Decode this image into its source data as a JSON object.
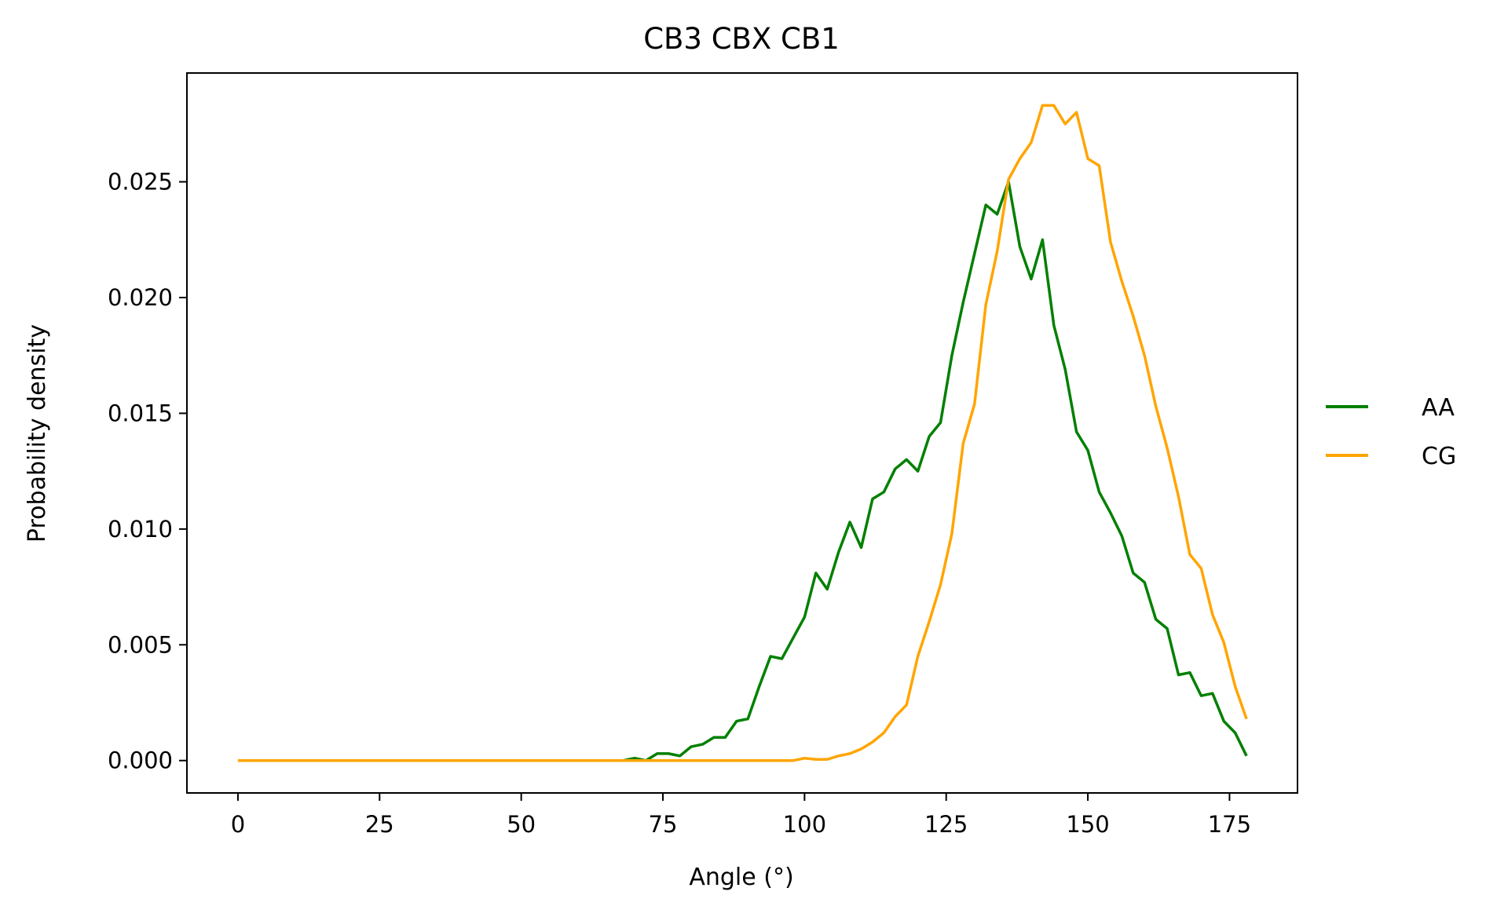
{
  "chart_data": {
    "type": "line",
    "title": "CB3 CBX CB1",
    "xlabel": "Angle (°)",
    "ylabel": "Probability density",
    "xlim": [
      -9,
      187
    ],
    "ylim": [
      -0.0014,
      0.0297
    ],
    "xticks": [
      0,
      25,
      50,
      75,
      100,
      125,
      150,
      175
    ],
    "xtick_labels": [
      "0",
      "25",
      "50",
      "75",
      "100",
      "125",
      "150",
      "175"
    ],
    "yticks": [
      0,
      0.005,
      0.01,
      0.015,
      0.02,
      0.025
    ],
    "ytick_labels": [
      "0.000",
      "0.005",
      "0.010",
      "0.015",
      "0.020",
      "0.025"
    ],
    "grid": false,
    "legend_position": "center-right outside",
    "series": [
      {
        "name": "AA",
        "color": "#008000",
        "x": [
          0,
          2,
          4,
          6,
          8,
          10,
          12,
          14,
          16,
          18,
          20,
          22,
          24,
          26,
          28,
          30,
          32,
          34,
          36,
          38,
          40,
          42,
          44,
          46,
          48,
          50,
          52,
          54,
          56,
          58,
          60,
          62,
          64,
          66,
          68,
          70,
          72,
          74,
          76,
          78,
          80,
          82,
          84,
          86,
          88,
          90,
          92,
          94,
          96,
          98,
          100,
          102,
          104,
          106,
          108,
          110,
          112,
          114,
          116,
          118,
          120,
          122,
          124,
          126,
          128,
          130,
          132,
          134,
          136,
          138,
          140,
          142,
          144,
          146,
          148,
          150,
          152,
          154,
          156,
          158,
          160,
          162,
          164,
          166,
          168,
          170,
          172,
          174,
          176,
          178
        ],
        "y": [
          0,
          0,
          0,
          0,
          0,
          0,
          0,
          0,
          0,
          0,
          0,
          0,
          0,
          0,
          0,
          0,
          0,
          0,
          0,
          0,
          0,
          0,
          0,
          0,
          0,
          0,
          0,
          0,
          0,
          0,
          0,
          0,
          0,
          0,
          0,
          0.0001,
          0,
          0.0003,
          0.0003,
          0.0002,
          0.0006,
          0.0007,
          0.001,
          0.001,
          0.0017,
          0.0018,
          0.0032,
          0.0045,
          0.0044,
          0.0053,
          0.0062,
          0.0081,
          0.0074,
          0.009,
          0.0103,
          0.0092,
          0.0113,
          0.0116,
          0.0126,
          0.013,
          0.0125,
          0.014,
          0.0146,
          0.0175,
          0.0198,
          0.0219,
          0.024,
          0.0236,
          0.025,
          0.0222,
          0.0208,
          0.0225,
          0.0188,
          0.0169,
          0.0142,
          0.0134,
          0.0116,
          0.0107,
          0.0097,
          0.0081,
          0.0077,
          0.0061,
          0.0057,
          0.0037,
          0.0038,
          0.0028,
          0.0029,
          0.0017,
          0.0012,
          0.0002
        ]
      },
      {
        "name": "CG",
        "color": "#ffa500",
        "x": [
          0,
          2,
          4,
          6,
          8,
          10,
          12,
          14,
          16,
          18,
          20,
          22,
          24,
          26,
          28,
          30,
          32,
          34,
          36,
          38,
          40,
          42,
          44,
          46,
          48,
          50,
          52,
          54,
          56,
          58,
          60,
          62,
          64,
          66,
          68,
          70,
          72,
          74,
          76,
          78,
          80,
          82,
          84,
          86,
          88,
          90,
          92,
          94,
          96,
          98,
          100,
          102,
          104,
          106,
          108,
          110,
          112,
          114,
          116,
          118,
          120,
          122,
          124,
          126,
          128,
          130,
          132,
          134,
          136,
          138,
          140,
          142,
          144,
          146,
          148,
          150,
          152,
          154,
          156,
          158,
          160,
          162,
          164,
          166,
          168,
          170,
          172,
          174,
          176,
          178
        ],
        "y": [
          0,
          0,
          0,
          0,
          0,
          0,
          0,
          0,
          0,
          0,
          0,
          0,
          0,
          0,
          0,
          0,
          0,
          0,
          0,
          0,
          0,
          0,
          0,
          0,
          0,
          0,
          0,
          0,
          0,
          0,
          0,
          0,
          0,
          0,
          0,
          0,
          0,
          0,
          0,
          0,
          0,
          0,
          0,
          0,
          0,
          0,
          0,
          0,
          0,
          0,
          0.0001,
          5e-05,
          5e-05,
          0.0002,
          0.0003,
          0.0005,
          0.0008,
          0.0012,
          0.0019,
          0.0024,
          0.0045,
          0.006,
          0.0076,
          0.0098,
          0.0137,
          0.0154,
          0.0197,
          0.022,
          0.0251,
          0.026,
          0.0267,
          0.0283,
          0.0283,
          0.0275,
          0.028,
          0.026,
          0.0257,
          0.0224,
          0.0207,
          0.0192,
          0.0175,
          0.0153,
          0.0135,
          0.0114,
          0.0089,
          0.0083,
          0.0063,
          0.0051,
          0.0032,
          0.0018
        ]
      }
    ]
  }
}
